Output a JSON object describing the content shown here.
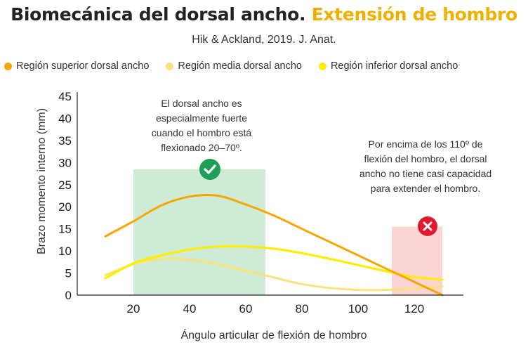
{
  "title": {
    "main": "Biomecánica del dorsal ancho.",
    "accent": "Extensión de hombro"
  },
  "subtitle": "Hik & Ackland, 2019. J. Anat.",
  "colors": {
    "accent": "#f0b000",
    "superior": "#f7a600",
    "media": "#fbe27a",
    "inferior": "#ffee00",
    "green_zone": "#cdebd5",
    "red_zone": "#fbd4d4",
    "check": "#1f9e57",
    "cross": "#e0192c"
  },
  "annotations": {
    "left": "El dorsal ancho es especialmente fuerte cuando el hombro está flexionado 20–70º.",
    "right": "Por encima de los 110º de flexión del hombro, el dorsal ancho no tiene casi capacidad para extender el hombro."
  },
  "icons": {
    "check": "check-circle-icon",
    "cross": "cross-circle-icon"
  },
  "chart_data": {
    "type": "line",
    "xlabel": "Ángulo articular de flexión de hombro",
    "ylabel": "Brazo momento interno (mm)",
    "xlim": [
      0,
      135
    ],
    "ylim": [
      0,
      45
    ],
    "xticks": [
      20,
      40,
      60,
      80,
      100,
      120
    ],
    "yticks": [
      0,
      5,
      10,
      15,
      20,
      25,
      30,
      35,
      40,
      45
    ],
    "grid": false,
    "legend_position": "top",
    "highlight_ranges": [
      {
        "x": [
          20,
          67
        ],
        "top": 28.5,
        "kind": "good"
      },
      {
        "x": [
          112,
          130
        ],
        "top": 15.5,
        "kind": "bad"
      }
    ],
    "series": [
      {
        "name": "Región superior dorsal ancho",
        "x": [
          10,
          20,
          30,
          40,
          50,
          60,
          70,
          80,
          90,
          100,
          110,
          120,
          130
        ],
        "y": [
          13.3,
          16.7,
          20.3,
          22.3,
          22.5,
          20.5,
          18,
          15,
          12,
          9,
          6,
          3,
          0
        ]
      },
      {
        "name": "Región media dorsal ancho",
        "x": [
          10,
          20,
          30,
          40,
          50,
          60,
          70,
          80,
          90,
          100,
          110,
          120,
          130
        ],
        "y": [
          4.5,
          7,
          8.2,
          8,
          7,
          5.5,
          4,
          2.5,
          1.6,
          1.2,
          1.2,
          1.5,
          2
        ]
      },
      {
        "name": "Región inferior dorsal ancho",
        "x": [
          10,
          20,
          30,
          40,
          50,
          60,
          70,
          80,
          90,
          100,
          110,
          120,
          130
        ],
        "y": [
          3.8,
          7.2,
          9,
          10.3,
          11,
          11,
          10.5,
          9.5,
          8.2,
          6.8,
          5.4,
          4.1,
          3.5
        ]
      }
    ]
  }
}
